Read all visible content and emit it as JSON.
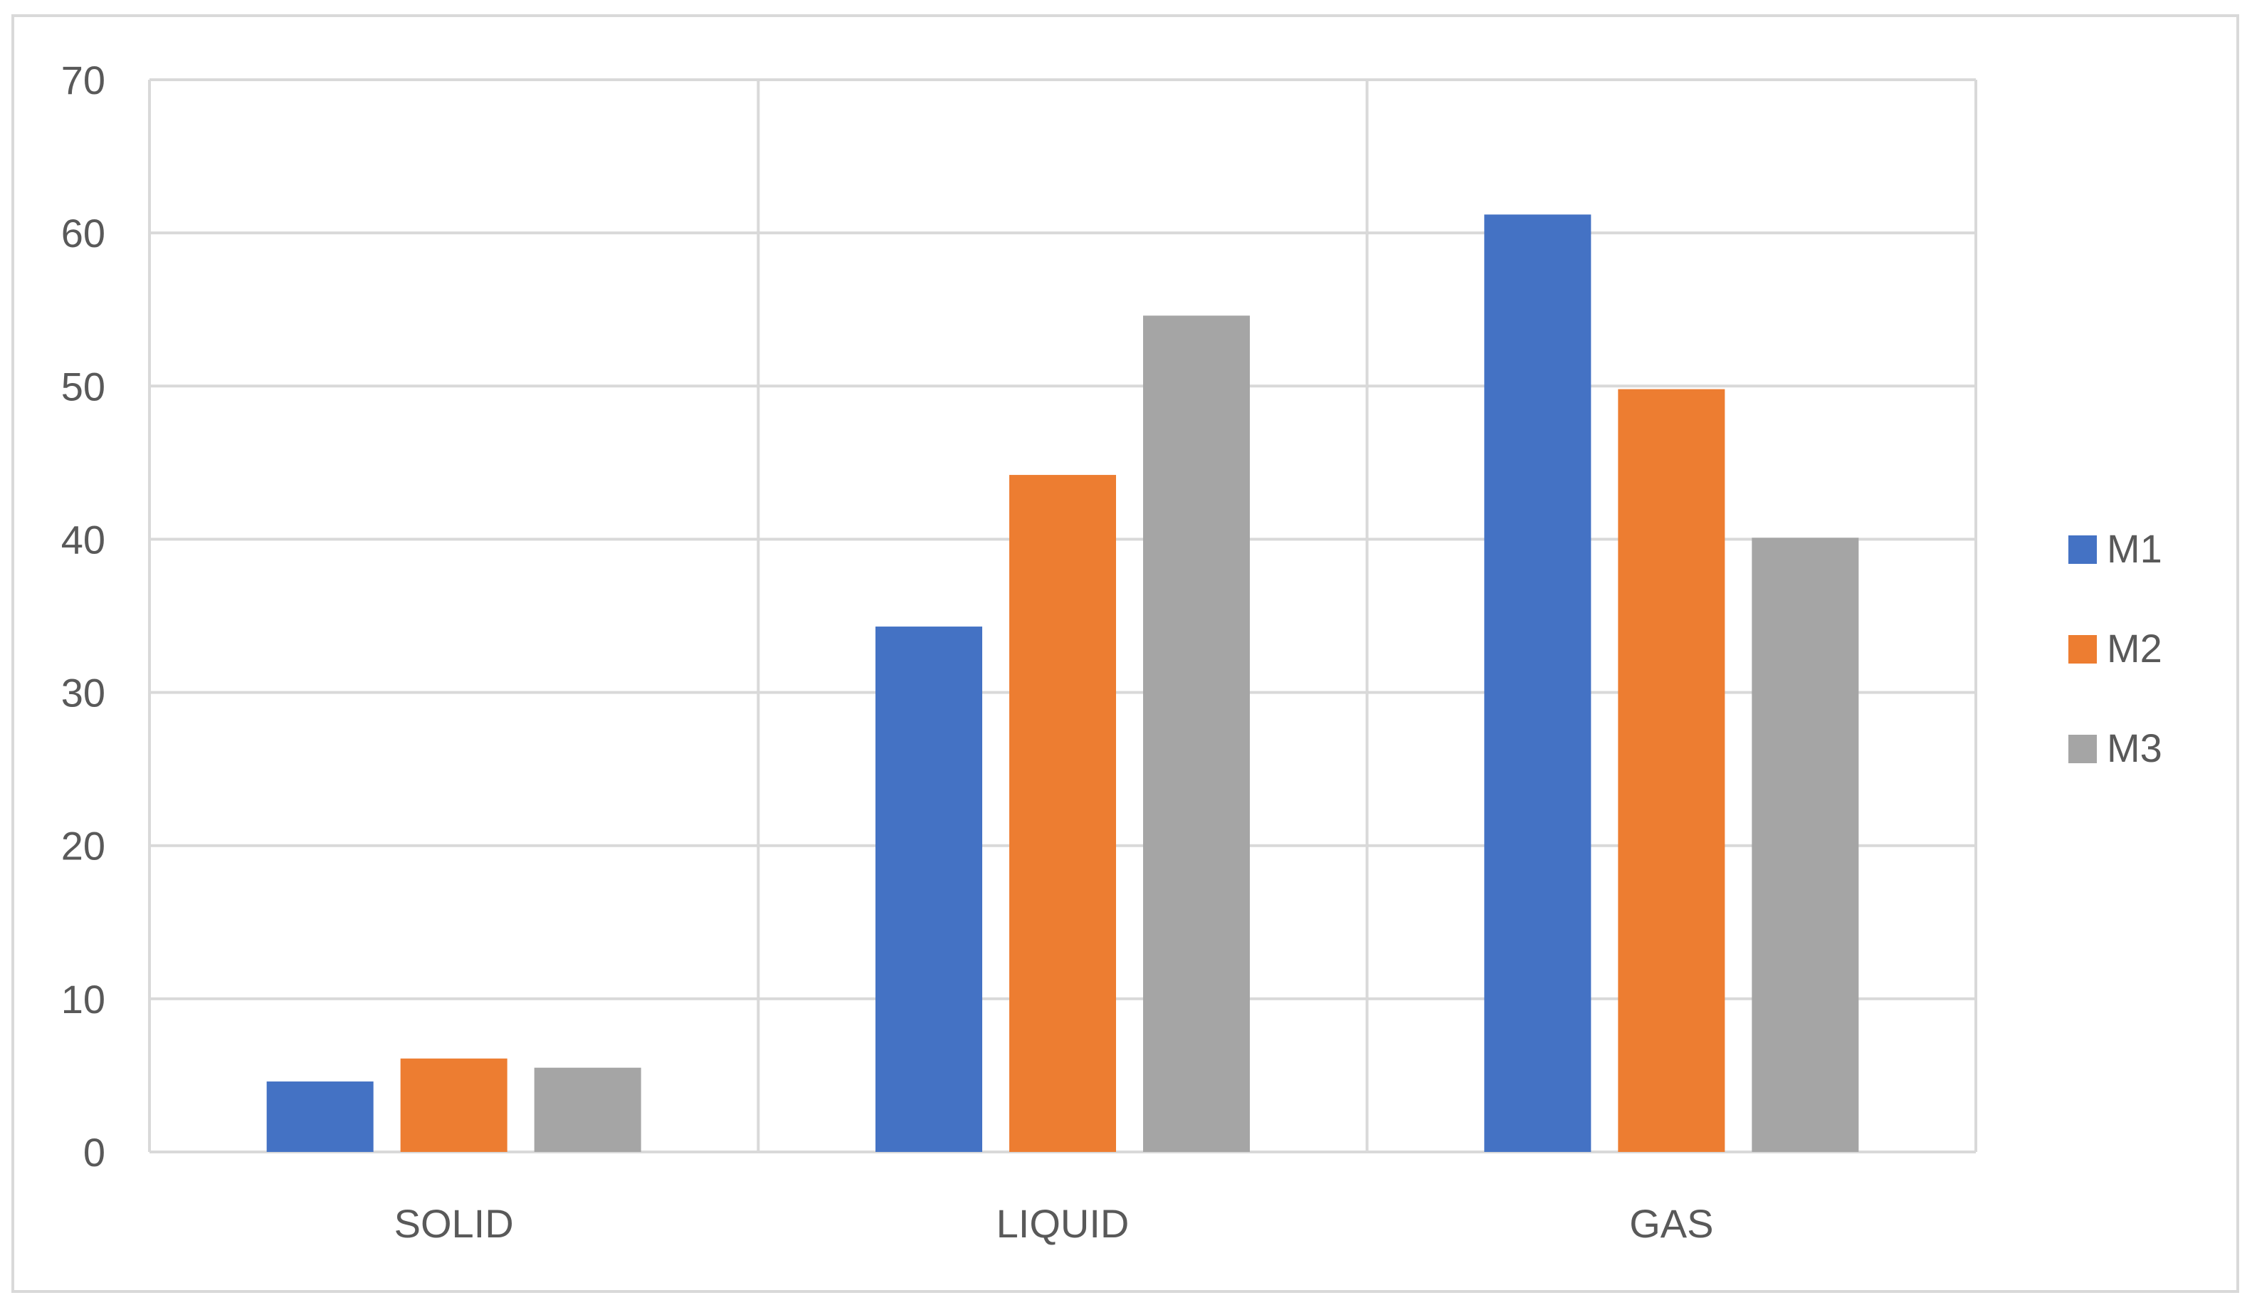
{
  "chart_data": {
    "type": "bar",
    "title": "",
    "xlabel": "",
    "ylabel": "",
    "categories": [
      "SOLID",
      "LIQUID",
      "GAS"
    ],
    "series": [
      {
        "name": "M1",
        "color": "#4472c4",
        "values": [
          4.6,
          34.3,
          61.2
        ]
      },
      {
        "name": "M2",
        "color": "#ed7d31",
        "values": [
          6.1,
          44.2,
          49.8
        ]
      },
      {
        "name": "M3",
        "color": "#a5a5a5",
        "values": [
          5.5,
          54.6,
          40.1
        ]
      }
    ],
    "ylim": [
      0,
      70
    ],
    "yticks": [
      0,
      10,
      20,
      30,
      40,
      50,
      60,
      70
    ],
    "grid": true,
    "legend_position": "right"
  }
}
